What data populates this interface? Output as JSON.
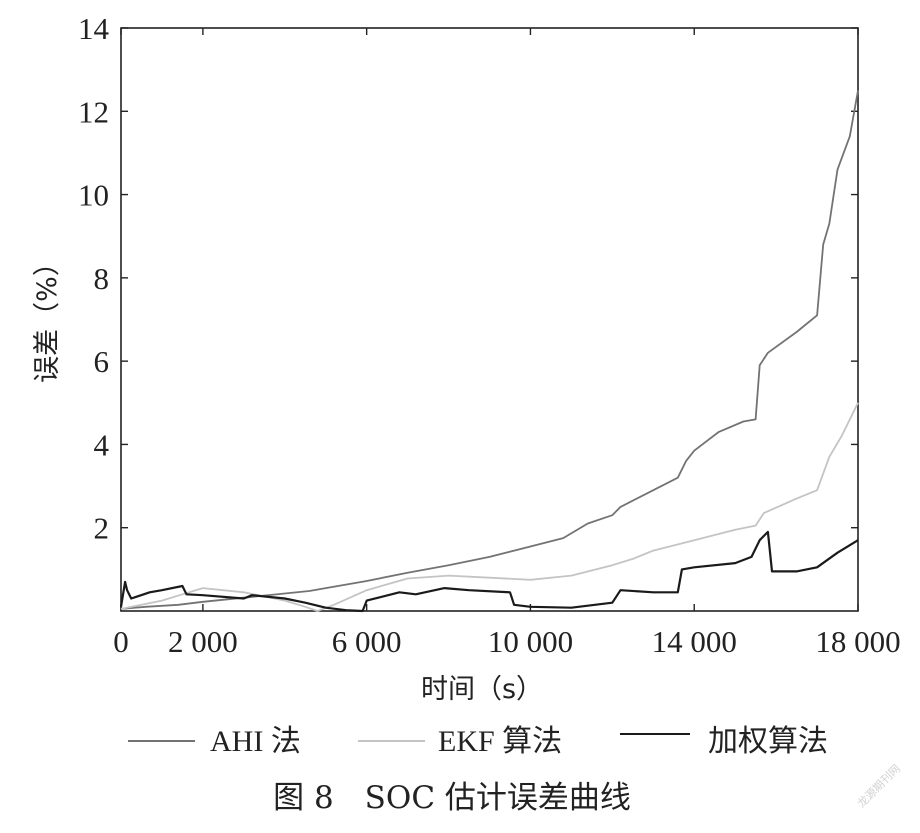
{
  "chart_data": {
    "type": "line",
    "xlabel": "时间（s）",
    "ylabel": "误差（%）",
    "xlim": [
      0,
      18000
    ],
    "ylim": [
      0,
      14
    ],
    "xticks": [
      0,
      2000,
      6000,
      10000,
      14000,
      18000
    ],
    "xtick_labels": [
      "0",
      "2 000",
      "6 000",
      "10 000",
      "14 000",
      "18 000"
    ],
    "yticks": [
      2,
      4,
      6,
      8,
      10,
      12,
      14
    ],
    "ytick_labels": [
      "2",
      "4",
      "6",
      "8",
      "10",
      "12",
      "14"
    ],
    "grid": false,
    "legend_position": "bottom",
    "series": [
      {
        "name": "AHI 法",
        "color": "#737373",
        "x": [
          0,
          600,
          1400,
          2000,
          3000,
          4000,
          4600,
          5000,
          6000,
          7000,
          8000,
          9000,
          10000,
          10800,
          11400,
          12000,
          12200,
          13000,
          13600,
          13800,
          14000,
          14600,
          15200,
          15500,
          15600,
          15800,
          16500,
          17000,
          17150,
          17300,
          17500,
          17800,
          18000
        ],
        "values": [
          0.05,
          0.1,
          0.15,
          0.22,
          0.32,
          0.42,
          0.48,
          0.55,
          0.72,
          0.92,
          1.1,
          1.3,
          1.55,
          1.75,
          2.1,
          2.3,
          2.5,
          2.9,
          3.2,
          3.6,
          3.85,
          4.3,
          4.55,
          4.6,
          5.9,
          6.2,
          6.7,
          7.1,
          8.8,
          9.3,
          10.6,
          11.4,
          12.5
        ]
      },
      {
        "name": "EKF 算法",
        "color": "#c4c4c4",
        "x": [
          0,
          500,
          1000,
          1500,
          2000,
          3000,
          4000,
          4500,
          4800,
          5200,
          6000,
          7000,
          8000,
          9000,
          10000,
          11000,
          12000,
          12500,
          13000,
          14000,
          15000,
          15500,
          15700,
          16500,
          17000,
          17300,
          17600,
          18000
        ],
        "values": [
          0.05,
          0.15,
          0.25,
          0.4,
          0.55,
          0.45,
          0.25,
          0.1,
          0.0,
          0.15,
          0.5,
          0.78,
          0.85,
          0.8,
          0.75,
          0.85,
          1.1,
          1.25,
          1.45,
          1.7,
          1.95,
          2.05,
          2.35,
          2.7,
          2.9,
          3.7,
          4.2,
          5.0
        ]
      },
      {
        "name": "加权算法",
        "color": "#1a1a1a",
        "x": [
          0,
          100,
          150,
          250,
          400,
          700,
          1000,
          1500,
          1600,
          2000,
          3000,
          3200,
          4000,
          4500,
          5000,
          5500,
          5900,
          6000,
          6800,
          7200,
          7900,
          8500,
          9500,
          9600,
          10000,
          11000,
          12000,
          12200,
          13000,
          13600,
          13700,
          14000,
          15000,
          15400,
          15600,
          15800,
          15900,
          16500,
          17000,
          17500,
          18000
        ],
        "values": [
          0.1,
          0.7,
          0.5,
          0.3,
          0.35,
          0.45,
          0.5,
          0.6,
          0.4,
          0.38,
          0.3,
          0.38,
          0.3,
          0.2,
          0.08,
          0.02,
          0.0,
          0.25,
          0.45,
          0.4,
          0.55,
          0.5,
          0.45,
          0.15,
          0.1,
          0.08,
          0.2,
          0.5,
          0.45,
          0.45,
          1.0,
          1.05,
          1.15,
          1.3,
          1.7,
          1.9,
          0.95,
          0.95,
          1.05,
          1.4,
          1.7
        ]
      }
    ]
  },
  "caption": "图 8　SOC 估计误差曲线",
  "watermark": "龙源期刊网"
}
